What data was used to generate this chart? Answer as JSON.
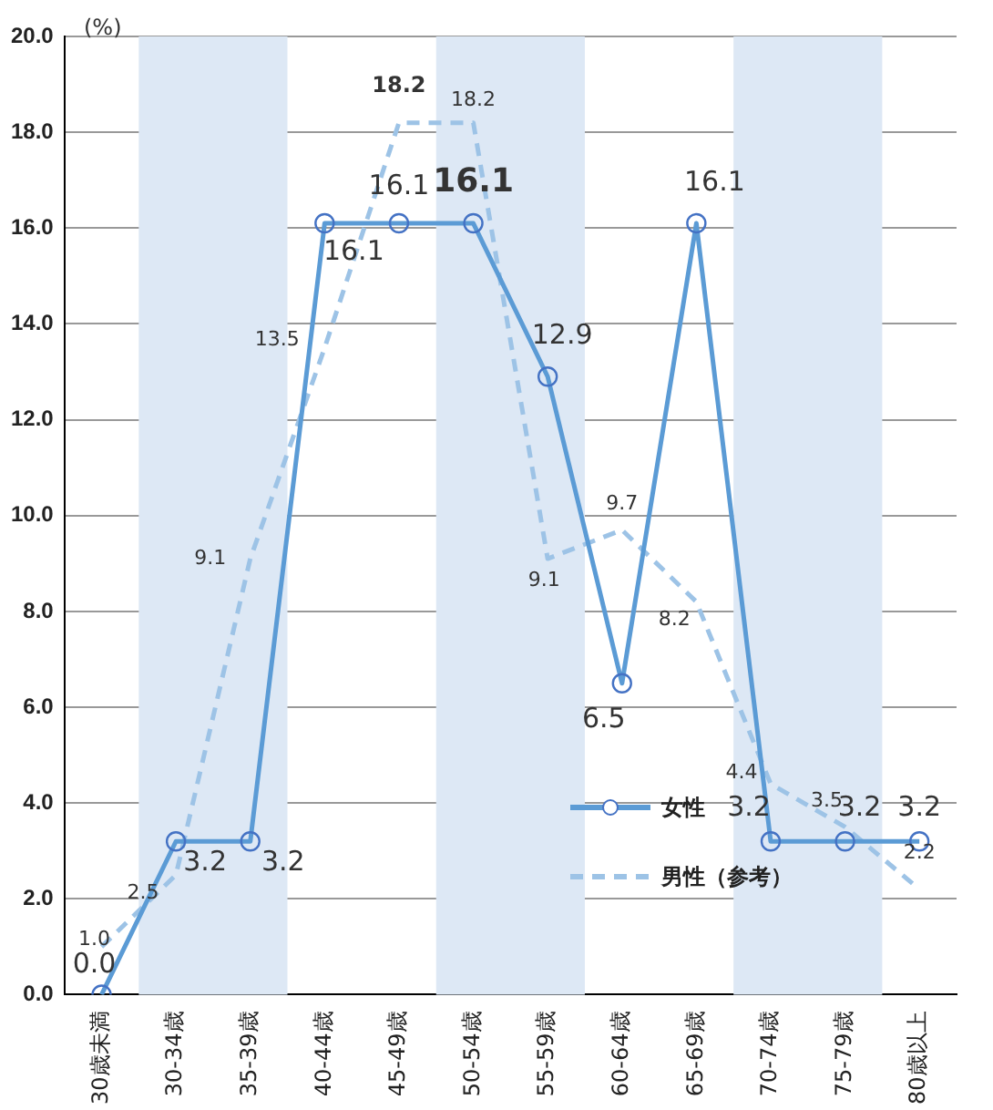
{
  "chart_data": {
    "type": "line",
    "ylabel": "(%)",
    "categories": [
      "30歳未満",
      "30-34歳",
      "35-39歳",
      "40-44歳",
      "45-49歳",
      "50-54歳",
      "55-59歳",
      "60-64歳",
      "65-69歳",
      "70-74歳",
      "75-79歳",
      "80歳以上"
    ],
    "series": [
      {
        "name": "女性",
        "color": "#5b9bd5",
        "marker": "circle",
        "line_style": "solid",
        "values": [
          0.0,
          3.2,
          3.2,
          16.1,
          16.1,
          16.1,
          12.9,
          6.5,
          16.1,
          3.2,
          3.2,
          3.2
        ],
        "value_labels": [
          "0.0",
          "3.2",
          "3.2",
          "16.1",
          "16.1",
          "16.1",
          "12.9",
          "6.5",
          "16.1",
          "3.2",
          "3.2",
          "3.2"
        ]
      },
      {
        "name": "男性（参考）",
        "color": "#9dc3e6",
        "marker": "none",
        "line_style": "dashed",
        "values": [
          1.0,
          2.5,
          9.1,
          13.5,
          18.2,
          18.2,
          9.1,
          9.7,
          8.2,
          4.4,
          3.5,
          2.2
        ],
        "value_labels": [
          "1.0",
          "2.5",
          "9.1",
          "13.5",
          "18.2",
          "18.2",
          "9.1",
          "9.7",
          "8.2",
          "4.4",
          "3.5",
          "2.2"
        ]
      }
    ],
    "ylim": [
      0,
      20
    ],
    "yticks": [
      {
        "value": 0,
        "label": "0.0"
      },
      {
        "value": 2,
        "label": "2.0"
      },
      {
        "value": 4,
        "label": "4.0"
      },
      {
        "value": 6,
        "label": "6.0"
      },
      {
        "value": 8,
        "label": "8.0"
      },
      {
        "value": 10,
        "label": "10.0"
      },
      {
        "value": 12,
        "label": "12.0"
      },
      {
        "value": 14,
        "label": "14.0"
      },
      {
        "value": 16,
        "label": "16.0"
      },
      {
        "value": 18,
        "label": "18.0"
      },
      {
        "value": 20,
        "label": "20.0"
      }
    ],
    "bands": [
      {
        "axis": "x",
        "from": "30-34歳",
        "to": "35-39歳",
        "color": "#dde8f5"
      },
      {
        "axis": "x",
        "from": "50-54歳",
        "to": "55-59歳",
        "color": "#dde8f5"
      },
      {
        "axis": "x",
        "from": "70-74歳",
        "to": "75-79歳",
        "color": "#dde8f5"
      }
    ],
    "grid": "y",
    "legend": "bottom right"
  }
}
